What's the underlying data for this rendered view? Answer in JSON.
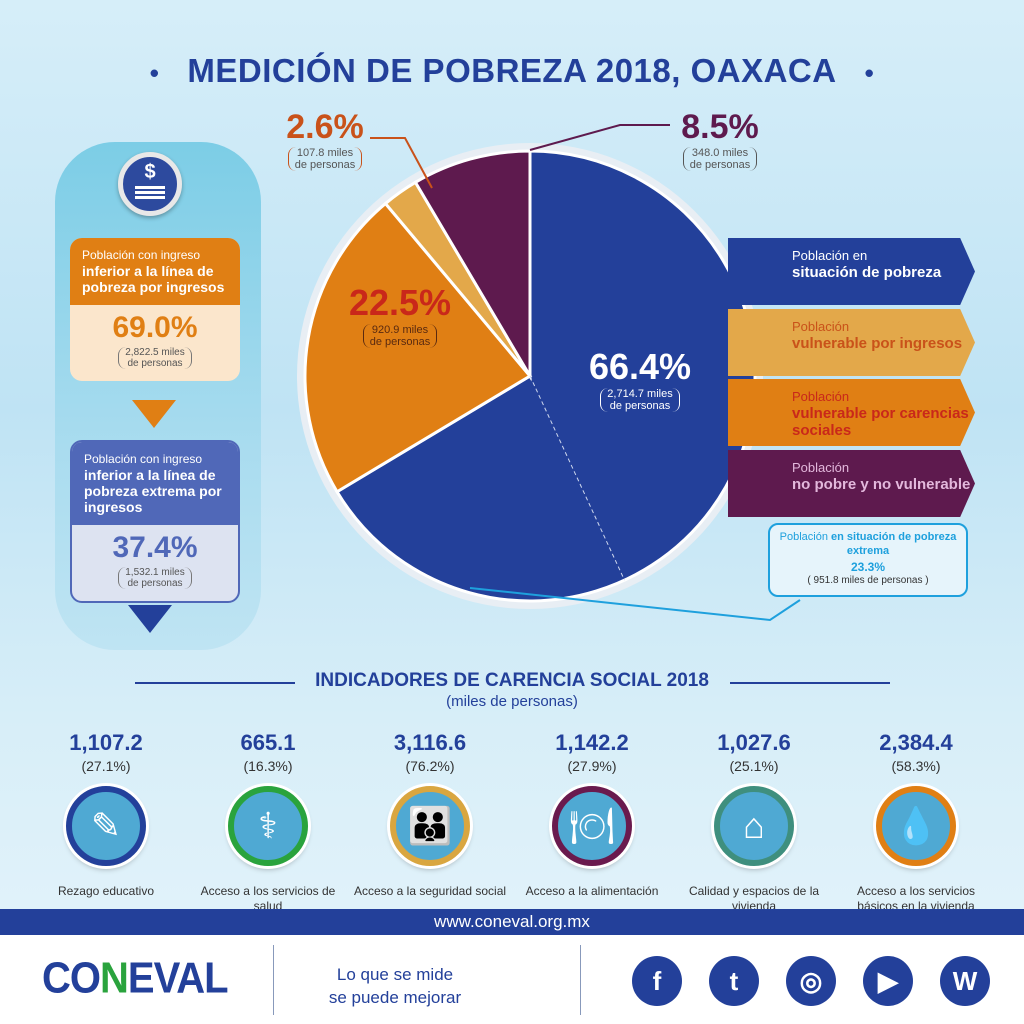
{
  "title": "MEDICIÓN DE POBREZA 2018, OAXACA",
  "left_panel": {
    "icon": "money-coin-icon",
    "income_poverty": {
      "label_light": "Población con ingreso",
      "label_bold": "inferior a la línea de pobreza por ingresos",
      "pct": "69.0%",
      "sub1": "2,822.5 miles",
      "sub2": "de personas",
      "color": "#e07f14"
    },
    "extreme_income_poverty": {
      "label_light": "Población con ingreso",
      "label_bold": "inferior a la línea de pobreza extrema por ingresos",
      "pct": "37.4%",
      "sub1": "1,532.1 miles",
      "sub2": "de personas",
      "color": "#5068b8"
    }
  },
  "chart_data": {
    "type": "pie",
    "slices": [
      {
        "label_light": "Población en",
        "label_bold": "situación de pobreza",
        "value": 66.4,
        "pct": "66.4%",
        "sub1": "2,714.7 miles",
        "sub2": "de personas",
        "color": "#23409a"
      },
      {
        "label_light": "Población",
        "label_bold": "vulnerable por carencias sociales",
        "value": 22.5,
        "pct": "22.5%",
        "sub1": "920.9 miles",
        "sub2": "de personas",
        "color": "#e07f14"
      },
      {
        "label_light": "Población",
        "label_bold": "vulnerable por ingresos",
        "value": 2.6,
        "pct": "2.6%",
        "sub1": "107.8 miles",
        "sub2": "de personas",
        "color": "#e3a84a"
      },
      {
        "label_light": "Población",
        "label_bold": "no pobre y no vulnerable",
        "value": 8.5,
        "pct": "8.5%",
        "sub1": "348.0 miles",
        "sub2": "de personas",
        "color": "#5e1a4e"
      }
    ],
    "extreme_poverty": {
      "label_light": "Población",
      "label_bold": "en situación de pobreza extrema",
      "pct": "23.3%",
      "sub": "( 951.8 miles de personas )",
      "value": 23.3
    }
  },
  "indicators": {
    "title": "INDICADORES DE CARENCIA SOCIAL 2018",
    "subtitle": "(miles de personas)",
    "items": [
      {
        "value": "1,107.2",
        "pct": "(27.1%)",
        "label": "Rezago educativo",
        "icon": "pencil-icon",
        "color": "#23409a"
      },
      {
        "value": "665.1",
        "pct": "(16.3%)",
        "label": "Acceso a los servicios de salud",
        "icon": "doctor-icon",
        "color": "#2aa33d"
      },
      {
        "value": "3,116.6",
        "pct": "(76.2%)",
        "label": "Acceso a la seguridad social",
        "icon": "family-hands-icon",
        "color": "#d9a640"
      },
      {
        "value": "1,142.2",
        "pct": "(27.9%)",
        "label": "Acceso a la alimentación",
        "icon": "plate-cutlery-icon",
        "color": "#6a1a4e"
      },
      {
        "value": "1,027.6",
        "pct": "(25.1%)",
        "label": "Calidad y espacios de la vivienda",
        "icon": "house-hands-icon",
        "color": "#3f8f7e"
      },
      {
        "value": "2,384.4",
        "pct": "(58.3%)",
        "label": "Acceso a los servicios básicos en la vivienda",
        "icon": "water-tap-icon",
        "color": "#e07f14"
      }
    ]
  },
  "footer": {
    "url": "www.coneval.org.mx",
    "logo": "CONEVAL",
    "slogan1": "Lo que se mide",
    "slogan2": "se puede mejorar",
    "social": [
      "facebook-icon",
      "twitter-icon",
      "instagram-icon",
      "youtube-icon",
      "wordpress-icon"
    ]
  }
}
